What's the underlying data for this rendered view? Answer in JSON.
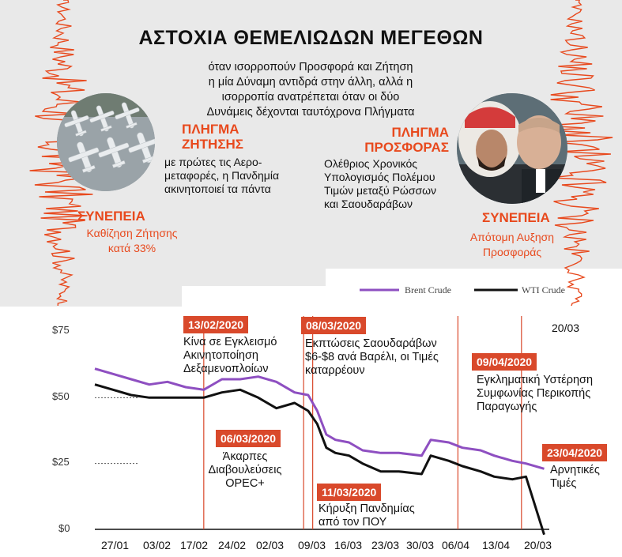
{
  "title": "ΑΣΤΟΧΙΑ ΘΕΜΕΛΙΩΔΩΝ ΜΕΓΕΘΩΝ",
  "intro_lines": [
    "όταν ισορροπούν Προσφορά και Ζήτηση",
    "η μία Δύναμη αντιδρά στην άλλη, αλλά η",
    "ισορροπία ανατρέπεται όταν οι δύο",
    "Δυνάμεις δέχονται ταυτόχρονα Πλήγματα"
  ],
  "demand": {
    "header_lines": [
      "ΠΛΗΓΜΑ",
      "ΖΗΤΗΣΗΣ"
    ],
    "body_lines": [
      "με πρώτες τις Αερο-",
      "μεταφορές, η Πανδημία",
      "ακινητοποιεί τα πάντα"
    ],
    "consequence_header": "ΣΥΝΕΠΕΙΑ",
    "consequence_lines": [
      "Καθίζηση Ζήτησης",
      "κατά 33%"
    ]
  },
  "supply": {
    "header_lines": [
      "ΠΛΗΓΜΑ",
      "ΠΡΟΣΦΟΡΑΣ"
    ],
    "body_lines": [
      "Ολέθριος Χρονικός",
      "Υπολογισμός Πολέμου",
      "Τιμών μεταξύ Ρώσσων",
      "και Σαουδαράβων"
    ],
    "consequence_header": "ΣΥΝΕΠΕΙΑ",
    "consequence_lines": [
      "Απότομη Αυξηση",
      "Προσφοράς"
    ]
  },
  "colors": {
    "accent": "#e8491d",
    "brent": "#8e4fc1",
    "wti": "#111111",
    "event_box": "#d9492b"
  },
  "events": [
    {
      "date_label": "13/02/2020",
      "text_lines": [
        "Κίνα σε Εγκλεισμό",
        "Ακινητοποίηση",
        "Δεξαμενοπλοίων"
      ]
    },
    {
      "date_label": "06/03/2020",
      "text_lines": [
        "Άκαρπες",
        "Διαβουλεύσεις",
        "OPEC+"
      ]
    },
    {
      "date_label": "08/03/2020",
      "text_lines": [
        "Εκπτώσεις Σαουδαράβων",
        "$6-$8 ανά Βαρέλι, οι Τιμές",
        "καταρρέουν"
      ]
    },
    {
      "date_label": "11/03/2020",
      "text_lines": [
        "Κήρυξη Πανδημίας",
        "από τον ΠΟΥ"
      ]
    },
    {
      "date_label": "09/04/2020",
      "text_lines": [
        "Εγκληματική Υστέρηση",
        "Συμφωνίας Περικοπής",
        "Παραγωγής"
      ]
    },
    {
      "date_label": "23/04/2020",
      "text_lines": [
        "Αρνητικές",
        "Τιμές"
      ]
    }
  ],
  "chart_data": {
    "type": "line",
    "title": "",
    "xlabel": "",
    "ylabel": "",
    "ylim": [
      0,
      75
    ],
    "y_ticks": [
      "$0",
      "$25",
      "$50",
      "$75"
    ],
    "x_tick_labels": [
      "27/01",
      "03/02",
      "17/02",
      "24/02",
      "02/03",
      "09/03",
      "16/03",
      "23/03",
      "30/03",
      "06/04",
      "13/04",
      "20/03"
    ],
    "top_right_label": "20/03",
    "legend": [
      "Brent Crude",
      "WTI Crude"
    ],
    "legend_position": "top-right",
    "x_range": [
      "2020-01-20",
      "2020-04-30"
    ],
    "series": [
      {
        "name": "Brent Crude",
        "x": [
          "2020-01-20",
          "2020-01-24",
          "2020-01-28",
          "2020-02-01",
          "2020-02-05",
          "2020-02-09",
          "2020-02-13",
          "2020-02-17",
          "2020-02-21",
          "2020-02-25",
          "2020-02-29",
          "2020-03-04",
          "2020-03-07",
          "2020-03-09",
          "2020-03-11",
          "2020-03-13",
          "2020-03-16",
          "2020-03-19",
          "2020-03-23",
          "2020-03-27",
          "2020-04-01",
          "2020-04-03",
          "2020-04-07",
          "2020-04-10",
          "2020-04-14",
          "2020-04-17",
          "2020-04-21",
          "2020-04-24",
          "2020-04-28"
        ],
        "y": [
          61,
          59,
          57,
          55,
          56,
          54,
          53,
          57,
          57,
          58,
          56,
          52,
          51,
          45,
          36,
          34,
          33,
          30,
          29,
          29,
          28,
          34,
          33,
          31,
          30,
          28,
          26,
          25,
          23
        ]
      },
      {
        "name": "WTI Crude",
        "x": [
          "2020-01-20",
          "2020-01-24",
          "2020-01-28",
          "2020-02-01",
          "2020-02-05",
          "2020-02-09",
          "2020-02-13",
          "2020-02-17",
          "2020-02-21",
          "2020-02-25",
          "2020-02-29",
          "2020-03-04",
          "2020-03-07",
          "2020-03-09",
          "2020-03-11",
          "2020-03-13",
          "2020-03-16",
          "2020-03-19",
          "2020-03-23",
          "2020-03-27",
          "2020-04-01",
          "2020-04-03",
          "2020-04-07",
          "2020-04-10",
          "2020-04-14",
          "2020-04-17",
          "2020-04-21",
          "2020-04-24",
          "2020-04-28"
        ],
        "y": [
          55,
          53,
          51,
          50,
          50,
          50,
          50,
          52,
          53,
          50,
          46,
          48,
          45,
          40,
          31,
          29,
          28,
          25,
          22,
          22,
          21,
          28,
          26,
          24,
          22,
          20,
          19,
          20,
          -2
        ]
      }
    ]
  }
}
